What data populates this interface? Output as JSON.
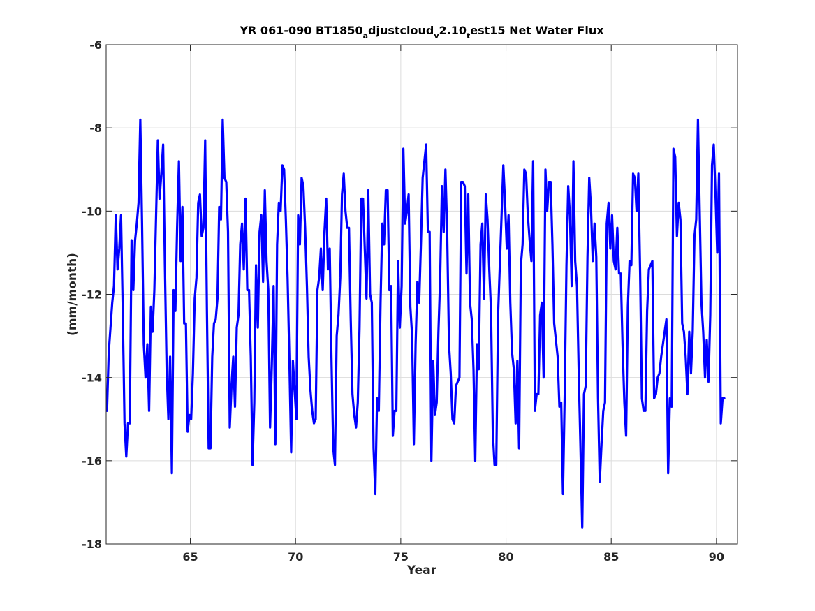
{
  "chart_data": {
    "type": "line",
    "title": {
      "prefix": "YR 061-090 BT1850",
      "sub1": "a",
      "mid1": "djustcloud",
      "sub2": "v",
      "mid2": "2.10",
      "sub3": "t",
      "suffix": "est15 Net Water Flux"
    },
    "xlabel": "Year",
    "ylabel": "(mm/month)",
    "xlim": [
      61,
      91
    ],
    "ylim": [
      -18,
      -6
    ],
    "xticks": [
      65,
      70,
      75,
      80,
      85,
      90
    ],
    "yticks": [
      -18,
      -16,
      -14,
      -12,
      -10,
      -8,
      -6
    ],
    "grid": true,
    "series_color": "#0000ff",
    "series": [
      {
        "x_start": 61.04,
        "x_step": 0.08333,
        "values": [
          -14.8,
          -13.4,
          -12.8,
          -12.2,
          -11.8,
          -10.1,
          -11.4,
          -10.9,
          -10.1,
          -12.4,
          -15.1,
          -15.9,
          -15.1,
          -15.1,
          -10.7,
          -11.9,
          -10.7,
          -10.3,
          -9.8,
          -7.8,
          -10.3,
          -13.2,
          -14.0,
          -13.2,
          -14.8,
          -12.3,
          -12.9,
          -11.9,
          -10.1,
          -8.3,
          -9.7,
          -9.1,
          -8.4,
          -11.3,
          -13.8,
          -15.0,
          -13.5,
          -16.3,
          -11.9,
          -12.4,
          -10.4,
          -8.8,
          -11.2,
          -9.9,
          -12.7,
          -12.7,
          -15.3,
          -14.9,
          -15.0,
          -13.9,
          -12.1,
          -11.6,
          -9.8,
          -9.6,
          -10.6,
          -10.4,
          -8.3,
          -12.4,
          -15.7,
          -15.7,
          -13.5,
          -12.7,
          -12.6,
          -12.1,
          -9.9,
          -10.2,
          -7.8,
          -9.2,
          -9.3,
          -10.5,
          -15.2,
          -14.2,
          -13.5,
          -14.7,
          -12.8,
          -12.5,
          -10.8,
          -10.3,
          -11.4,
          -9.7,
          -11.9,
          -11.9,
          -13.5,
          -16.1,
          -14.6,
          -11.3,
          -12.8,
          -10.5,
          -10.1,
          -11.7,
          -9.5,
          -11.2,
          -11.9,
          -15.2,
          -13.7,
          -11.8,
          -15.6,
          -10.8,
          -9.8,
          -10.0,
          -8.9,
          -9.0,
          -10.2,
          -11.6,
          -13.6,
          -15.8,
          -13.6,
          -14.3,
          -15.0,
          -10.1,
          -10.8,
          -9.2,
          -9.4,
          -10.4,
          -11.8,
          -13.5,
          -14.3,
          -14.8,
          -15.1,
          -15.0,
          -11.9,
          -11.6,
          -10.9,
          -11.9,
          -10.5,
          -9.7,
          -11.4,
          -10.9,
          -13.5,
          -15.7,
          -16.1,
          -13.0,
          -12.5,
          -11.6,
          -9.6,
          -9.1,
          -10.0,
          -10.4,
          -10.4,
          -12.6,
          -14.4,
          -14.9,
          -15.2,
          -14.6,
          -12.8,
          -9.7,
          -9.7,
          -10.9,
          -12.1,
          -9.5,
          -12.0,
          -12.2,
          -15.7,
          -16.8,
          -14.5,
          -14.8,
          -12.2,
          -10.3,
          -10.8,
          -9.5,
          -9.5,
          -11.9,
          -11.8,
          -15.4,
          -14.8,
          -14.8,
          -11.2,
          -12.8,
          -11.8,
          -8.5,
          -10.3,
          -10.0,
          -9.6,
          -12.3,
          -13.0,
          -15.6,
          -13.2,
          -11.7,
          -12.2,
          -10.8,
          -9.2,
          -8.8,
          -8.4,
          -10.5,
          -10.5,
          -16.0,
          -13.6,
          -14.9,
          -14.6,
          -12.9,
          -11.6,
          -9.4,
          -10.5,
          -9.0,
          -10.5,
          -13.2,
          -13.9,
          -15.0,
          -15.1,
          -14.2,
          -14.1,
          -14.0,
          -9.3,
          -9.3,
          -9.4,
          -11.5,
          -9.6,
          -12.2,
          -12.6,
          -13.8,
          -16.0,
          -13.2,
          -13.8,
          -10.8,
          -10.3,
          -12.1,
          -9.6,
          -10.2,
          -11.4,
          -12.4,
          -15.3,
          -16.1,
          -16.1,
          -12.5,
          -11.3,
          -10.1,
          -8.9,
          -9.8,
          -10.9,
          -10.1,
          -12.2,
          -13.4,
          -13.8,
          -15.1,
          -13.6,
          -15.7,
          -11.3,
          -10.8,
          -9.0,
          -9.1,
          -10.1,
          -10.7,
          -11.2,
          -8.8,
          -14.8,
          -14.4,
          -14.4,
          -12.5,
          -12.2,
          -14.0,
          -9.0,
          -10.0,
          -9.3,
          -9.3,
          -10.8,
          -12.7,
          -13.1,
          -13.5,
          -14.7,
          -14.6,
          -16.8,
          -14.4,
          -11.3,
          -9.4,
          -10.1,
          -11.8,
          -8.8,
          -11.2,
          -11.8,
          -13.9,
          -15.7,
          -17.6,
          -14.4,
          -14.2,
          -11.1,
          -9.2,
          -9.9,
          -11.2,
          -10.3,
          -11.1,
          -14.5,
          -16.5,
          -15.6,
          -14.8,
          -14.6,
          -10.3,
          -9.8,
          -10.9,
          -10.1,
          -11.2,
          -11.4,
          -10.4,
          -11.5,
          -11.5,
          -13.2,
          -14.6,
          -15.4,
          -12.3,
          -11.2,
          -11.3,
          -9.1,
          -9.2,
          -10.0,
          -9.1,
          -11.5,
          -14.5,
          -14.8,
          -14.8,
          -12.4,
          -11.4,
          -11.3,
          -11.2,
          -14.5,
          -14.4,
          -14.0,
          -13.9,
          -13.5,
          -13.2,
          -12.9,
          -12.6,
          -16.3,
          -14.5,
          -14.7,
          -8.5,
          -8.7,
          -10.6,
          -9.8,
          -10.2,
          -12.7,
          -12.9,
          -13.5,
          -14.4,
          -12.9,
          -13.9,
          -12.9,
          -10.6,
          -10.2,
          -7.8,
          -10.0,
          -12.2,
          -12.9,
          -14.0,
          -13.1,
          -14.1,
          -12.5,
          -8.9,
          -8.4,
          -9.6,
          -11.0,
          -9.1,
          -15.1,
          -14.5,
          -14.5
        ]
      }
    ]
  }
}
